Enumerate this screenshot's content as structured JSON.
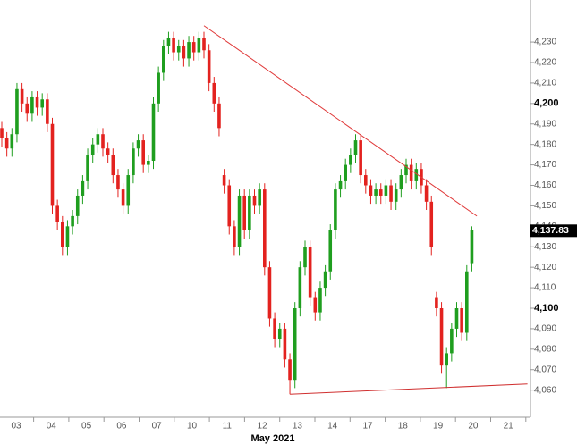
{
  "chart_data": {
    "type": "candlestick",
    "x_label": "May 2021",
    "categories": [
      "03",
      "04",
      "05",
      "06",
      "07",
      "10",
      "11",
      "12",
      "13",
      "14",
      "17",
      "18",
      "19",
      "20",
      "21"
    ],
    "open": [
      4188,
      4183,
      4178,
      4185,
      4207,
      4200,
      4195,
      4203,
      4198,
      4202,
      4190,
      4150,
      4142,
      4130,
      4140,
      4145,
      4155,
      4162,
      4175,
      4180,
      4185,
      4178,
      4175,
      4165,
      4158,
      4150,
      4165,
      4178,
      4182,
      4170,
      4172,
      4200,
      4215,
      4228,
      4232,
      4225,
      4228,
      4222,
      4230,
      4225,
      4232,
      4226,
      4210,
      4200,
      4165,
      4160,
      4140,
      4130,
      4155,
      4138,
      4155,
      4150,
      4158,
      4120,
      4095,
      4085,
      4090,
      4075,
      4065,
      4100,
      4120,
      4130,
      4105,
      4098,
      4110,
      4118,
      4138,
      4158,
      4162,
      4170,
      4175,
      4182,
      4165,
      4160,
      4155,
      4158,
      4155,
      4160,
      4152,
      4158,
      4165,
      4170,
      4162,
      4168,
      4160,
      4152,
      4105,
      4100,
      4072,
      4078,
      4090,
      4100,
      4088,
      4122
    ],
    "high": [
      4191,
      4186,
      4188,
      4210,
      4210,
      4203,
      4206,
      4206,
      4205,
      4205,
      4193,
      4153,
      4145,
      4143,
      4148,
      4158,
      4165,
      4178,
      4183,
      4188,
      4188,
      4181,
      4178,
      4168,
      4161,
      4168,
      4181,
      4185,
      4185,
      4175,
      4203,
      4218,
      4231,
      4235,
      4235,
      4231,
      4231,
      4233,
      4233,
      4235,
      4235,
      4229,
      4213,
      4203,
      4168,
      4163,
      4143,
      4158,
      4158,
      4158,
      4158,
      4161,
      4161,
      4123,
      4098,
      4093,
      4093,
      4078,
      4103,
      4123,
      4133,
      4133,
      4108,
      4113,
      4121,
      4141,
      4161,
      4165,
      4173,
      4178,
      4185,
      4185,
      4168,
      4163,
      4161,
      4161,
      4163,
      4163,
      4161,
      4168,
      4173,
      4173,
      4171,
      4171,
      4163,
      4155,
      4108,
      4103,
      4081,
      4093,
      4103,
      4103,
      4121,
      4140
    ],
    "low": [
      4179,
      4174,
      4174,
      4181,
      4196,
      4191,
      4191,
      4194,
      4194,
      4186,
      4146,
      4138,
      4126,
      4126,
      4136,
      4141,
      4151,
      4158,
      4171,
      4176,
      4174,
      4171,
      4161,
      4154,
      4146,
      4146,
      4161,
      4174,
      4166,
      4166,
      4168,
      4196,
      4211,
      4224,
      4221,
      4221,
      4218,
      4218,
      4221,
      4221,
      4222,
      4206,
      4196,
      4184,
      4156,
      4136,
      4126,
      4126,
      4134,
      4134,
      4146,
      4146,
      4116,
      4091,
      4081,
      4081,
      4071,
      4058,
      4061,
      4096,
      4116,
      4101,
      4094,
      4094,
      4106,
      4114,
      4134,
      4154,
      4158,
      4166,
      4171,
      4161,
      4156,
      4151,
      4151,
      4151,
      4151,
      4148,
      4148,
      4154,
      4161,
      4158,
      4158,
      4156,
      4148,
      4126,
      4096,
      4068,
      4061,
      4074,
      4086,
      4084,
      4084,
      4118
    ],
    "close": [
      4183,
      4178,
      4185,
      4207,
      4200,
      4195,
      4203,
      4198,
      4202,
      4190,
      4150,
      4142,
      4130,
      4140,
      4145,
      4155,
      4162,
      4175,
      4180,
      4185,
      4178,
      4175,
      4165,
      4158,
      4150,
      4165,
      4178,
      4182,
      4170,
      4172,
      4200,
      4215,
      4228,
      4232,
      4225,
      4228,
      4222,
      4230,
      4225,
      4232,
      4226,
      4210,
      4200,
      4188,
      4160,
      4140,
      4130,
      4155,
      4138,
      4155,
      4150,
      4158,
      4120,
      4095,
      4085,
      4090,
      4075,
      4065,
      4100,
      4120,
      4130,
      4105,
      4098,
      4110,
      4118,
      4138,
      4158,
      4162,
      4170,
      4175,
      4182,
      4165,
      4160,
      4155,
      4158,
      4155,
      4160,
      4152,
      4158,
      4165,
      4170,
      4162,
      4168,
      4160,
      4152,
      4130,
      4100,
      4072,
      4078,
      4090,
      4100,
      4088,
      4118,
      4138
    ],
    "up_color": "#1f9e1f",
    "down_color": "#e3221f",
    "last_price": {
      "value": 4137.83,
      "label": "4,137.83"
    },
    "trendlines": [
      {
        "color": "#e03a3a",
        "x": [
          40,
          94
        ],
        "values": [
          4238,
          4145
        ]
      },
      {
        "color": "#d03030",
        "x": [
          57,
          104
        ],
        "values": [
          4058,
          4063
        ]
      }
    ],
    "ylim": [
      4052,
      4244
    ],
    "yticks": [
      {
        "value": 4060,
        "label": "4,060"
      },
      {
        "value": 4070,
        "label": "4,070"
      },
      {
        "value": 4080,
        "label": "4,080"
      },
      {
        "value": 4090,
        "label": "4,090"
      },
      {
        "value": 4100,
        "label": "4,100"
      },
      {
        "value": 4110,
        "label": "4,110"
      },
      {
        "value": 4120,
        "label": "4,120"
      },
      {
        "value": 4130,
        "label": "4,130"
      },
      {
        "value": 4140,
        "label": "4,140"
      },
      {
        "value": 4150,
        "label": "4,150"
      },
      {
        "value": 4160,
        "label": "4,160"
      },
      {
        "value": 4170,
        "label": "4,170"
      },
      {
        "value": 4180,
        "label": "4,180"
      },
      {
        "value": 4190,
        "label": "4,190"
      },
      {
        "value": 4200,
        "label": "4,200"
      },
      {
        "value": 4210,
        "label": "4,210"
      },
      {
        "value": 4220,
        "label": "4,220"
      },
      {
        "value": 4230,
        "label": "4,230"
      }
    ]
  }
}
